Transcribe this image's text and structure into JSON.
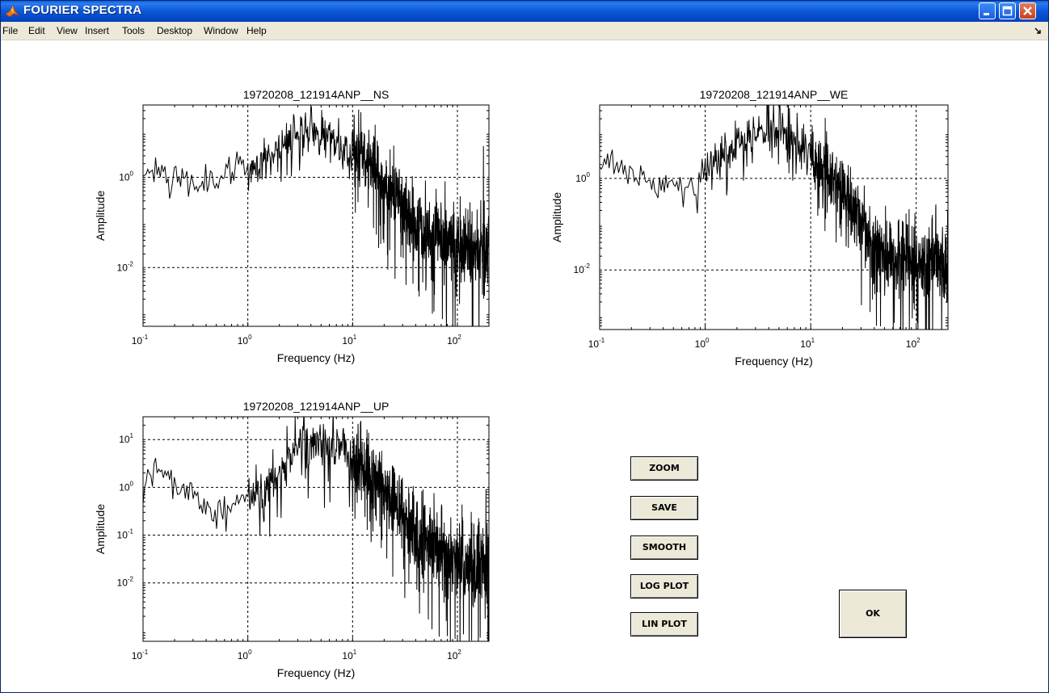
{
  "window": {
    "title": "FOURIER SPECTRA",
    "app_icon": "matlab-icon",
    "controls": [
      "minimize-icon",
      "maximize-icon",
      "close-icon"
    ]
  },
  "menu": {
    "items": [
      "File",
      "Edit",
      "View",
      "Insert",
      "Tools",
      "Desktop",
      "Window",
      "Help"
    ],
    "dock_icon": "undock-arrow-icon"
  },
  "buttons": {
    "zoom": "ZOOM",
    "save": "SAVE",
    "smooth": "SMOOTH",
    "log_plot": "LOG PLOT",
    "lin_plot": "LIN PLOT",
    "ok": "OK"
  },
  "chart_data": [
    {
      "type": "line",
      "title": "19720208_121914ANP__NS",
      "xlabel": "Frequency (Hz)",
      "ylabel": "Amplitude",
      "xscale": "log",
      "yscale": "log",
      "xlim": [
        0.1,
        200
      ],
      "ylim": [
        0.0005,
        40
      ],
      "xticks": [
        {
          "base": "10",
          "exp": "-1"
        },
        {
          "base": "10",
          "exp": "0"
        },
        {
          "base": "10",
          "exp": "1"
        },
        {
          "base": "10",
          "exp": "2"
        }
      ],
      "yticks": [
        {
          "base": "10",
          "exp": "-2"
        },
        {
          "base": "10",
          "exp": "0"
        }
      ],
      "grid": true,
      "envelope": {
        "x": [
          0.1,
          0.13,
          0.2,
          0.3,
          0.5,
          0.8,
          1.2,
          2,
          3,
          5,
          8,
          12,
          20,
          35,
          60,
          100,
          200
        ],
        "y": [
          1.1,
          2.0,
          1.0,
          0.8,
          1.0,
          1.4,
          2.2,
          5.0,
          12,
          9,
          5,
          4,
          0.9,
          0.15,
          0.05,
          0.03,
          0.025
        ]
      },
      "spread": [
        0.12,
        0.3,
        0.3,
        0.3,
        0.35,
        0.4,
        0.45,
        0.5,
        0.55,
        0.6,
        0.7,
        0.8,
        0.85,
        0.9,
        1.0,
        1.1,
        1.1
      ]
    },
    {
      "type": "line",
      "title": "19720208_121914ANP__WE",
      "xlabel": "Frequency (Hz)",
      "ylabel": "Amplitude",
      "xscale": "log",
      "yscale": "log",
      "xlim": [
        0.1,
        200
      ],
      "ylim": [
        0.0005,
        40
      ],
      "xticks": [
        {
          "base": "10",
          "exp": "-1"
        },
        {
          "base": "10",
          "exp": "0"
        },
        {
          "base": "10",
          "exp": "1"
        },
        {
          "base": "10",
          "exp": "2"
        }
      ],
      "yticks": [
        {
          "base": "10",
          "exp": "-2"
        },
        {
          "base": "10",
          "exp": "0"
        }
      ],
      "grid": true,
      "envelope": {
        "x": [
          0.1,
          0.13,
          0.2,
          0.3,
          0.5,
          0.8,
          1.2,
          2,
          3,
          5,
          8,
          12,
          20,
          35,
          60,
          100,
          200
        ],
        "y": [
          1.5,
          3.0,
          1.5,
          0.7,
          0.7,
          0.9,
          2.0,
          5.0,
          10,
          14,
          6,
          2,
          0.5,
          0.05,
          0.02,
          0.015,
          0.015
        ]
      },
      "spread": [
        0.12,
        0.3,
        0.3,
        0.35,
        0.4,
        0.45,
        0.5,
        0.5,
        0.55,
        0.6,
        0.7,
        0.8,
        0.85,
        0.9,
        1.0,
        1.1,
        1.1
      ]
    },
    {
      "type": "line",
      "title": "19720208_121914ANP__UP",
      "xlabel": "Frequency (Hz)",
      "ylabel": "Amplitude",
      "xscale": "log",
      "yscale": "log",
      "xlim": [
        0.1,
        200
      ],
      "ylim": [
        0.0006,
        30
      ],
      "xticks": [
        {
          "base": "10",
          "exp": "-1"
        },
        {
          "base": "10",
          "exp": "0"
        },
        {
          "base": "10",
          "exp": "1"
        },
        {
          "base": "10",
          "exp": "2"
        }
      ],
      "yticks": [
        {
          "base": "10",
          "exp": "-2"
        },
        {
          "base": "10",
          "exp": "-1"
        },
        {
          "base": "10",
          "exp": "0"
        },
        {
          "base": "10",
          "exp": "1"
        }
      ],
      "grid": true,
      "envelope": {
        "x": [
          0.1,
          0.12,
          0.2,
          0.3,
          0.5,
          0.8,
          1.2,
          2,
          3,
          5,
          8,
          12,
          20,
          35,
          60,
          100,
          200
        ],
        "y": [
          0.8,
          3.5,
          1.2,
          0.6,
          0.4,
          0.5,
          0.8,
          2.0,
          6,
          8,
          6,
          3,
          1.0,
          0.15,
          0.05,
          0.03,
          0.02
        ]
      },
      "spread": [
        0.12,
        0.3,
        0.35,
        0.4,
        0.4,
        0.45,
        0.5,
        0.55,
        0.6,
        0.65,
        0.7,
        0.8,
        0.85,
        0.9,
        1.0,
        1.1,
        1.1
      ]
    }
  ]
}
